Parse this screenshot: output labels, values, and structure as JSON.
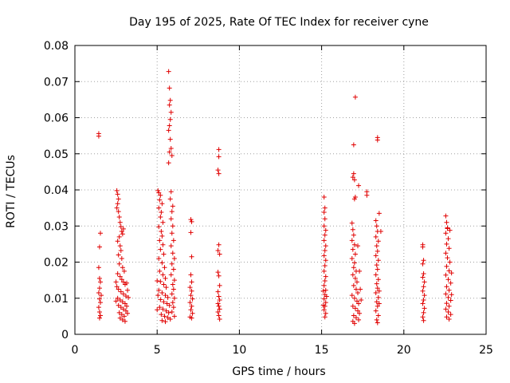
{
  "chart_data": {
    "type": "scatter",
    "title": "Day 195 of 2025, Rate Of TEC Index for receiver cyne",
    "xlabel": "GPS time / hours",
    "ylabel": "ROTI / TECUs",
    "xlim": [
      0,
      25
    ],
    "ylim": [
      0,
      0.08
    ],
    "x_ticks": [
      "0",
      "5",
      "10",
      "15",
      "20",
      "25"
    ],
    "x_tick_values": [
      0,
      5,
      10,
      15,
      20,
      25
    ],
    "y_ticks": [
      "0",
      "0.01",
      "0.02",
      "0.03",
      "0.04",
      "0.05",
      "0.06",
      "0.07",
      "0.08"
    ],
    "y_tick_values": [
      0,
      0.01,
      0.02,
      0.03,
      0.04,
      0.05,
      0.06,
      0.07,
      0.08
    ],
    "grid": true,
    "legend": "none",
    "marker": "plus",
    "color": "#e00000",
    "points": [
      [
        1.45,
        0.0556
      ],
      [
        1.45,
        0.0549
      ],
      [
        1.55,
        0.028
      ],
      [
        1.5,
        0.0242
      ],
      [
        1.45,
        0.0185
      ],
      [
        1.5,
        0.0155
      ],
      [
        1.55,
        0.0145
      ],
      [
        1.5,
        0.0128
      ],
      [
        1.45,
        0.0115
      ],
      [
        1.5,
        0.0098
      ],
      [
        1.55,
        0.0088
      ],
      [
        1.45,
        0.0075
      ],
      [
        1.5,
        0.0062
      ],
      [
        1.55,
        0.0052
      ],
      [
        1.5,
        0.0045
      ],
      [
        1.6,
        0.0108
      ],
      [
        2.55,
        0.0398
      ],
      [
        2.6,
        0.0388
      ],
      [
        2.65,
        0.0375
      ],
      [
        2.6,
        0.0362
      ],
      [
        2.55,
        0.035
      ],
      [
        2.65,
        0.034
      ],
      [
        2.7,
        0.0325
      ],
      [
        2.75,
        0.031
      ],
      [
        2.8,
        0.0298
      ],
      [
        2.85,
        0.0285
      ],
      [
        2.9,
        0.0278
      ],
      [
        2.95,
        0.0292
      ],
      [
        2.7,
        0.027
      ],
      [
        2.6,
        0.0258
      ],
      [
        2.75,
        0.0245
      ],
      [
        2.8,
        0.0232
      ],
      [
        2.65,
        0.022
      ],
      [
        2.85,
        0.021
      ],
      [
        2.7,
        0.0195
      ],
      [
        2.9,
        0.0185
      ],
      [
        3.0,
        0.0175
      ],
      [
        2.6,
        0.0168
      ],
      [
        2.75,
        0.016
      ],
      [
        2.85,
        0.0152
      ],
      [
        2.95,
        0.0145
      ],
      [
        3.05,
        0.0138
      ],
      [
        2.55,
        0.0132
      ],
      [
        2.65,
        0.0125
      ],
      [
        2.8,
        0.0118
      ],
      [
        2.95,
        0.0112
      ],
      [
        3.1,
        0.0106
      ],
      [
        2.6,
        0.01
      ],
      [
        2.75,
        0.0095
      ],
      [
        2.9,
        0.009
      ],
      [
        3.05,
        0.0085
      ],
      [
        2.65,
        0.008
      ],
      [
        2.8,
        0.0075
      ],
      [
        2.95,
        0.007
      ],
      [
        3.1,
        0.0065
      ],
      [
        2.7,
        0.006
      ],
      [
        2.85,
        0.0055
      ],
      [
        3.0,
        0.005
      ],
      [
        2.75,
        0.0045
      ],
      [
        2.9,
        0.004
      ],
      [
        3.05,
        0.0036
      ],
      [
        3.15,
        0.0142
      ],
      [
        3.2,
        0.0122
      ],
      [
        3.25,
        0.0102
      ],
      [
        2.5,
        0.0145
      ],
      [
        2.5,
        0.0092
      ],
      [
        3.15,
        0.0078
      ],
      [
        3.2,
        0.0058
      ],
      [
        5.05,
        0.0398
      ],
      [
        5.1,
        0.0392
      ],
      [
        5.2,
        0.0385
      ],
      [
        5.15,
        0.0372
      ],
      [
        5.3,
        0.0362
      ],
      [
        5.1,
        0.035
      ],
      [
        5.25,
        0.0338
      ],
      [
        5.2,
        0.0325
      ],
      [
        5.35,
        0.031
      ],
      [
        5.1,
        0.0298
      ],
      [
        5.25,
        0.0285
      ],
      [
        5.3,
        0.0272
      ],
      [
        5.15,
        0.026
      ],
      [
        5.35,
        0.0248
      ],
      [
        5.2,
        0.0235
      ],
      [
        5.4,
        0.0222
      ],
      [
        5.1,
        0.021
      ],
      [
        5.3,
        0.0198
      ],
      [
        5.45,
        0.0185
      ],
      [
        5.15,
        0.0175
      ],
      [
        5.35,
        0.0165
      ],
      [
        5.5,
        0.0155
      ],
      [
        5.2,
        0.0146
      ],
      [
        5.4,
        0.0138
      ],
      [
        5.55,
        0.013
      ],
      [
        5.1,
        0.0122
      ],
      [
        5.3,
        0.0115
      ],
      [
        5.5,
        0.0108
      ],
      [
        5.65,
        0.0102
      ],
      [
        5.2,
        0.0096
      ],
      [
        5.4,
        0.009
      ],
      [
        5.6,
        0.0085
      ],
      [
        5.75,
        0.008
      ],
      [
        5.15,
        0.0075
      ],
      [
        5.35,
        0.007
      ],
      [
        5.55,
        0.0065
      ],
      [
        5.7,
        0.006
      ],
      [
        5.25,
        0.0055
      ],
      [
        5.45,
        0.005
      ],
      [
        5.65,
        0.0046
      ],
      [
        5.8,
        0.0042
      ],
      [
        5.3,
        0.0038
      ],
      [
        5.5,
        0.0035
      ],
      [
        5.0,
        0.0148
      ],
      [
        5.05,
        0.0108
      ],
      [
        5.0,
        0.0068
      ],
      [
        5.7,
        0.0728
      ],
      [
        5.75,
        0.0682
      ],
      [
        5.8,
        0.0648
      ],
      [
        5.75,
        0.0635
      ],
      [
        5.85,
        0.0615
      ],
      [
        5.8,
        0.0595
      ],
      [
        5.75,
        0.0578
      ],
      [
        5.7,
        0.0565
      ],
      [
        5.8,
        0.054
      ],
      [
        5.85,
        0.0515
      ],
      [
        5.75,
        0.0505
      ],
      [
        5.9,
        0.0495
      ],
      [
        5.7,
        0.0475
      ],
      [
        5.85,
        0.0395
      ],
      [
        5.8,
        0.0375
      ],
      [
        5.95,
        0.0355
      ],
      [
        5.9,
        0.034
      ],
      [
        5.85,
        0.032
      ],
      [
        5.95,
        0.03
      ],
      [
        5.9,
        0.028
      ],
      [
        6.0,
        0.026
      ],
      [
        5.85,
        0.0245
      ],
      [
        5.95,
        0.0225
      ],
      [
        6.05,
        0.021
      ],
      [
        5.9,
        0.0195
      ],
      [
        6.0,
        0.018
      ],
      [
        5.85,
        0.0165
      ],
      [
        6.05,
        0.015
      ],
      [
        5.95,
        0.0138
      ],
      [
        6.0,
        0.0125
      ],
      [
        5.9,
        0.0112
      ],
      [
        6.05,
        0.01
      ],
      [
        5.95,
        0.0088
      ],
      [
        6.0,
        0.0075
      ],
      [
        5.9,
        0.0062
      ],
      [
        6.05,
        0.005
      ],
      [
        7.05,
        0.0318
      ],
      [
        7.1,
        0.0312
      ],
      [
        7.05,
        0.0282
      ],
      [
        7.1,
        0.0215
      ],
      [
        7.05,
        0.0165
      ],
      [
        7.1,
        0.0145
      ],
      [
        7.0,
        0.013
      ],
      [
        7.1,
        0.012
      ],
      [
        7.05,
        0.0108
      ],
      [
        7.15,
        0.0098
      ],
      [
        7.0,
        0.0088
      ],
      [
        7.1,
        0.0078
      ],
      [
        7.05,
        0.0068
      ],
      [
        7.15,
        0.0058
      ],
      [
        7.0,
        0.0048
      ],
      [
        7.1,
        0.0045
      ],
      [
        8.75,
        0.0512
      ],
      [
        8.75,
        0.0492
      ],
      [
        8.7,
        0.0455
      ],
      [
        8.75,
        0.0445
      ],
      [
        8.75,
        0.0248
      ],
      [
        8.7,
        0.0232
      ],
      [
        8.8,
        0.0222
      ],
      [
        8.7,
        0.0172
      ],
      [
        8.75,
        0.0162
      ],
      [
        8.8,
        0.0135
      ],
      [
        8.7,
        0.0118
      ],
      [
        8.75,
        0.0105
      ],
      [
        8.8,
        0.0095
      ],
      [
        8.7,
        0.0085
      ],
      [
        8.75,
        0.0078
      ],
      [
        8.8,
        0.007
      ],
      [
        8.7,
        0.0062
      ],
      [
        8.75,
        0.0052
      ],
      [
        8.8,
        0.0042
      ],
      [
        15.15,
        0.038
      ],
      [
        15.2,
        0.035
      ],
      [
        15.15,
        0.0338
      ],
      [
        15.2,
        0.032
      ],
      [
        15.15,
        0.03
      ],
      [
        15.25,
        0.0288
      ],
      [
        15.2,
        0.0275
      ],
      [
        15.15,
        0.026
      ],
      [
        15.25,
        0.0245
      ],
      [
        15.2,
        0.0232
      ],
      [
        15.15,
        0.0218
      ],
      [
        15.25,
        0.0205
      ],
      [
        15.2,
        0.019
      ],
      [
        15.15,
        0.0175
      ],
      [
        15.25,
        0.016
      ],
      [
        15.2,
        0.0148
      ],
      [
        15.15,
        0.0135
      ],
      [
        15.25,
        0.0122
      ],
      [
        15.2,
        0.011
      ],
      [
        15.15,
        0.0098
      ],
      [
        15.25,
        0.0088
      ],
      [
        15.2,
        0.0078
      ],
      [
        15.15,
        0.0068
      ],
      [
        15.25,
        0.0058
      ],
      [
        15.2,
        0.0048
      ],
      [
        15.1,
        0.012
      ],
      [
        15.1,
        0.008
      ],
      [
        15.3,
        0.0105
      ],
      [
        16.85,
        0.0308
      ],
      [
        16.9,
        0.029
      ],
      [
        16.95,
        0.0275
      ],
      [
        16.85,
        0.026
      ],
      [
        17.0,
        0.0248
      ],
      [
        16.9,
        0.0235
      ],
      [
        17.05,
        0.0222
      ],
      [
        16.85,
        0.021
      ],
      [
        17.0,
        0.0198
      ],
      [
        16.95,
        0.0185
      ],
      [
        17.1,
        0.0175
      ],
      [
        16.9,
        0.0165
      ],
      [
        17.05,
        0.0155
      ],
      [
        17.15,
        0.0145
      ],
      [
        16.95,
        0.0135
      ],
      [
        17.1,
        0.0125
      ],
      [
        17.2,
        0.0115
      ],
      [
        16.85,
        0.0108
      ],
      [
        17.0,
        0.01
      ],
      [
        17.15,
        0.0092
      ],
      [
        17.25,
        0.0085
      ],
      [
        16.9,
        0.0078
      ],
      [
        17.05,
        0.0072
      ],
      [
        17.2,
        0.0065
      ],
      [
        17.3,
        0.0058
      ],
      [
        16.95,
        0.0052
      ],
      [
        17.1,
        0.0046
      ],
      [
        17.25,
        0.004
      ],
      [
        16.9,
        0.0036
      ],
      [
        17.0,
        0.003
      ],
      [
        17.35,
        0.0125
      ],
      [
        17.4,
        0.0095
      ],
      [
        17.3,
        0.0175
      ],
      [
        17.2,
        0.0245
      ],
      [
        17.05,
        0.0657
      ],
      [
        16.95,
        0.0525
      ],
      [
        16.95,
        0.0445
      ],
      [
        16.9,
        0.0435
      ],
      [
        17.0,
        0.0428
      ],
      [
        17.05,
        0.038
      ],
      [
        17.0,
        0.0375
      ],
      [
        17.25,
        0.0412
      ],
      [
        17.75,
        0.0395
      ],
      [
        17.75,
        0.0385
      ],
      [
        18.3,
        0.0315
      ],
      [
        18.35,
        0.03
      ],
      [
        18.4,
        0.0285
      ],
      [
        18.3,
        0.027
      ],
      [
        18.45,
        0.0258
      ],
      [
        18.35,
        0.0245
      ],
      [
        18.4,
        0.023
      ],
      [
        18.3,
        0.0218
      ],
      [
        18.45,
        0.0205
      ],
      [
        18.35,
        0.0192
      ],
      [
        18.4,
        0.018
      ],
      [
        18.3,
        0.0165
      ],
      [
        18.45,
        0.0152
      ],
      [
        18.35,
        0.014
      ],
      [
        18.4,
        0.0128
      ],
      [
        18.3,
        0.0115
      ],
      [
        18.45,
        0.0102
      ],
      [
        18.35,
        0.009
      ],
      [
        18.4,
        0.0078
      ],
      [
        18.3,
        0.0065
      ],
      [
        18.45,
        0.0052
      ],
      [
        18.35,
        0.004
      ],
      [
        18.4,
        0.0032
      ],
      [
        18.5,
        0.012
      ],
      [
        18.5,
        0.0085
      ],
      [
        18.6,
        0.0285
      ],
      [
        18.4,
        0.0545
      ],
      [
        18.4,
        0.0538
      ],
      [
        18.5,
        0.0335
      ],
      [
        21.15,
        0.0248
      ],
      [
        21.15,
        0.0242
      ],
      [
        21.2,
        0.0205
      ],
      [
        21.15,
        0.0195
      ],
      [
        21.2,
        0.0168
      ],
      [
        21.15,
        0.0158
      ],
      [
        21.25,
        0.0145
      ],
      [
        21.2,
        0.0132
      ],
      [
        21.15,
        0.012
      ],
      [
        21.25,
        0.0108
      ],
      [
        21.2,
        0.0095
      ],
      [
        21.15,
        0.0085
      ],
      [
        21.25,
        0.0072
      ],
      [
        21.2,
        0.006
      ],
      [
        21.15,
        0.0048
      ],
      [
        21.2,
        0.0038
      ],
      [
        22.55,
        0.0328
      ],
      [
        22.6,
        0.031
      ],
      [
        22.65,
        0.0295
      ],
      [
        22.55,
        0.028
      ],
      [
        22.7,
        0.0265
      ],
      [
        22.6,
        0.025
      ],
      [
        22.75,
        0.0238
      ],
      [
        22.55,
        0.0225
      ],
      [
        22.65,
        0.0212
      ],
      [
        22.8,
        0.02
      ],
      [
        22.6,
        0.0188
      ],
      [
        22.75,
        0.0176
      ],
      [
        22.55,
        0.0164
      ],
      [
        22.7,
        0.0152
      ],
      [
        22.85,
        0.0142
      ],
      [
        22.6,
        0.0132
      ],
      [
        22.75,
        0.0122
      ],
      [
        22.55,
        0.0112
      ],
      [
        22.7,
        0.0102
      ],
      [
        22.85,
        0.0094
      ],
      [
        22.6,
        0.0086
      ],
      [
        22.75,
        0.0078
      ],
      [
        22.55,
        0.007
      ],
      [
        22.7,
        0.0062
      ],
      [
        22.85,
        0.0055
      ],
      [
        22.6,
        0.0048
      ],
      [
        22.75,
        0.0042
      ],
      [
        22.65,
        0.0293
      ],
      [
        22.8,
        0.0288
      ],
      [
        22.9,
        0.017
      ],
      [
        22.9,
        0.011
      ]
    ]
  }
}
